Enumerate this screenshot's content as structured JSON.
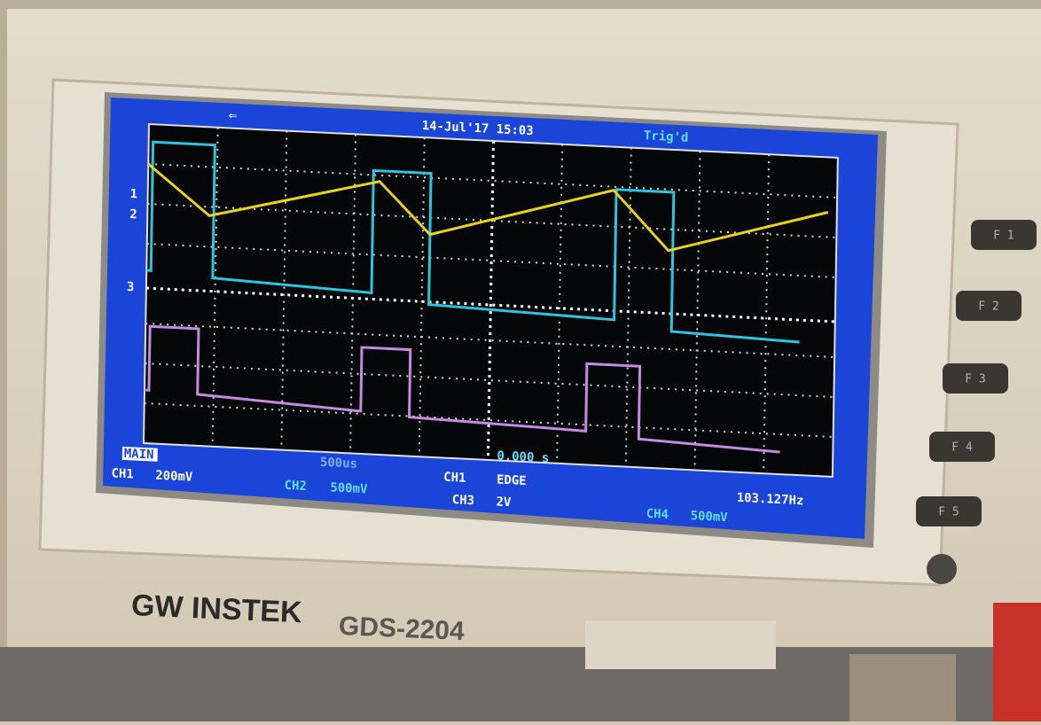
{
  "screen": {
    "datetime": "14-Jul'17 15:03",
    "trigger_status": "Trig'd",
    "channel_markers": [
      "1",
      "2",
      "3"
    ],
    "mode": "MAIN",
    "timebase": "500us",
    "time_offset": "0.000 s",
    "trigger": {
      "source": "CH1",
      "type": "EDGE"
    },
    "frequency": "103.127Hz",
    "channels": [
      {
        "label": "CH1",
        "scale": "200mV"
      },
      {
        "label": "CH2",
        "scale": "500mV"
      },
      {
        "label": "CH3",
        "scale": "2V"
      },
      {
        "label": "CH4",
        "scale": "500mV"
      }
    ]
  },
  "panel": {
    "brand": "GW INSTEK",
    "model": "GDS-2204",
    "buttons": [
      "F 1",
      "F 2",
      "F 3",
      "F 4",
      "F 5"
    ]
  }
}
